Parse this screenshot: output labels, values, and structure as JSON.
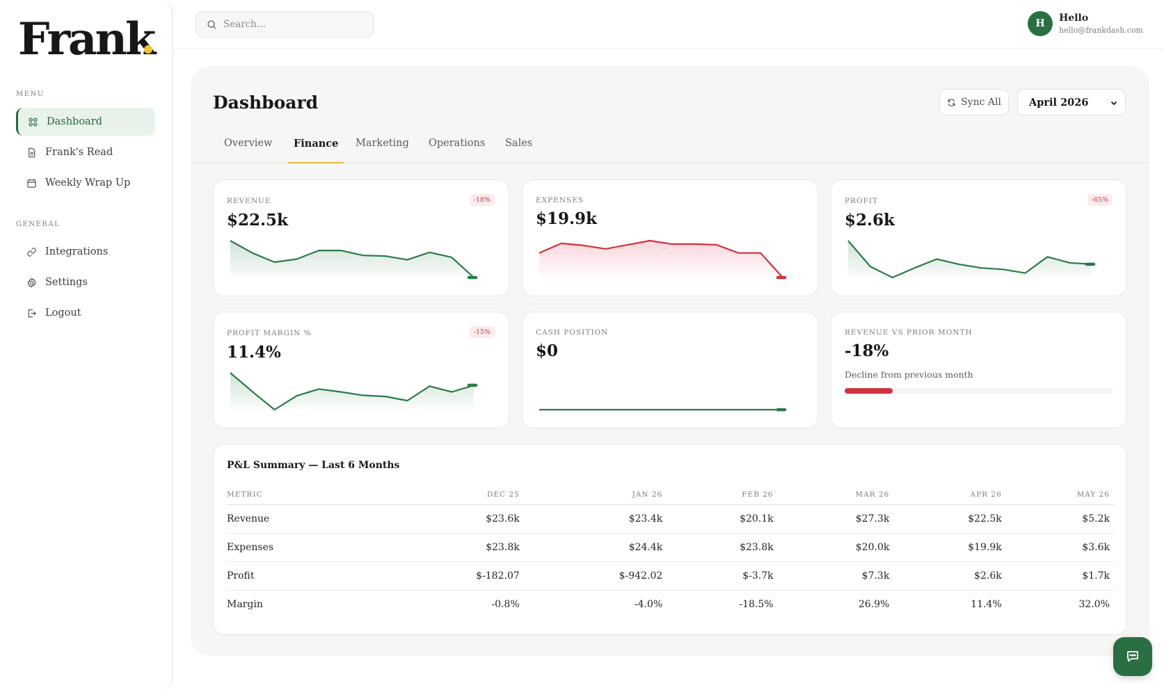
{
  "app": {
    "logo": "Frank"
  },
  "sidebar": {
    "menu_label": "MENU",
    "menu_items": [
      {
        "label": "Dashboard",
        "icon": "grid-icon"
      },
      {
        "label": "Frank's Read",
        "icon": "document-icon"
      },
      {
        "label": "Weekly Wrap Up",
        "icon": "calendar-icon"
      }
    ],
    "general_label": "GENERAL",
    "general_items": [
      {
        "label": "Integrations",
        "icon": "link-icon"
      },
      {
        "label": "Settings",
        "icon": "gear-icon"
      },
      {
        "label": "Logout",
        "icon": "logout-icon"
      }
    ]
  },
  "search": {
    "placeholder": "Search..."
  },
  "user": {
    "initial": "H",
    "name": "Hello",
    "email": "hello@frankdash.com"
  },
  "page": {
    "title": "Dashboard",
    "sync_label": "Sync All",
    "month": "April 2026",
    "tabs": [
      "Overview",
      "Finance",
      "Marketing",
      "Operations",
      "Sales"
    ],
    "active_tab": "Finance"
  },
  "colors": {
    "accent_green": "#2b6e44",
    "negative_red": "#d0313e",
    "tab_underline": "#e8b93a"
  },
  "cards": {
    "revenue": {
      "label": "REVENUE",
      "value": "$22.5k",
      "badge": "-18%",
      "trend": [
        23.6,
        21.6,
        20.1,
        20.6,
        22.0,
        22.0,
        21.2,
        21.1,
        20.5,
        21.7,
        20.9,
        17.6
      ]
    },
    "expenses": {
      "label": "EXPENSES",
      "value": "$19.9k",
      "trend": [
        21.6,
        23.0,
        22.7,
        22.2,
        22.8,
        23.4,
        22.9,
        22.9,
        22.8,
        21.6,
        21.6,
        18.0
      ]
    },
    "profit": {
      "label": "PROFIT",
      "value": "$2.6k",
      "badge": "-65%",
      "trend": [
        7.3,
        3.8,
        2.3,
        3.6,
        4.8,
        4.1,
        3.6,
        3.4,
        2.9,
        5.1,
        4.3,
        4.1
      ]
    },
    "profit_margin": {
      "label": "PROFIT MARGIN %",
      "value": "11.4%",
      "badge": "-15%",
      "trend": [
        26.9,
        14.8,
        3.2,
        12.1,
        16.5,
        14.6,
        12.4,
        11.7,
        9.0,
        18.3,
        14.6,
        18.9
      ]
    },
    "cash_position": {
      "label": "CASH POSITION",
      "value": "$0",
      "trend": [
        0,
        0,
        0,
        0,
        0,
        0,
        0,
        0,
        0,
        0,
        0,
        0
      ]
    },
    "rev_vs_prior": {
      "label": "REVENUE VS PRIOR MONTH",
      "value": "-18%",
      "subtitle": "Decline from previous month",
      "progress_fraction": 0.18
    }
  },
  "pl": {
    "title": "P&L Summary — Last 6 Months",
    "columns": [
      "METRIC",
      "DEC 25",
      "JAN 26",
      "FEB 26",
      "MAR 26",
      "APR 26",
      "MAY 26"
    ],
    "rows": [
      {
        "metric": "Revenue",
        "values": [
          "$23.6k",
          "$23.4k",
          "$20.1k",
          "$27.3k",
          "$22.5k",
          "$5.2k"
        ],
        "tones": [
          "",
          "",
          "",
          "",
          "",
          ""
        ]
      },
      {
        "metric": "Expenses",
        "values": [
          "$23.8k",
          "$24.4k",
          "$23.8k",
          "$20.0k",
          "$19.9k",
          "$3.6k"
        ],
        "tones": [
          "",
          "",
          "",
          "",
          "",
          ""
        ]
      },
      {
        "metric": "Profit",
        "values": [
          "$-182.07",
          "$-942.02",
          "$-3.7k",
          "$7.3k",
          "$2.6k",
          "$1.7k"
        ],
        "tones": [
          "neg",
          "neg",
          "neg",
          "pos",
          "pos",
          "pos"
        ]
      },
      {
        "metric": "Margin",
        "values": [
          "-0.8%",
          "-4.0%",
          "-18.5%",
          "26.9%",
          "11.4%",
          "32.0%"
        ],
        "tones": [
          "",
          "",
          "",
          "",
          "",
          ""
        ]
      }
    ]
  },
  "chat": {
    "icon": "chat-icon"
  }
}
